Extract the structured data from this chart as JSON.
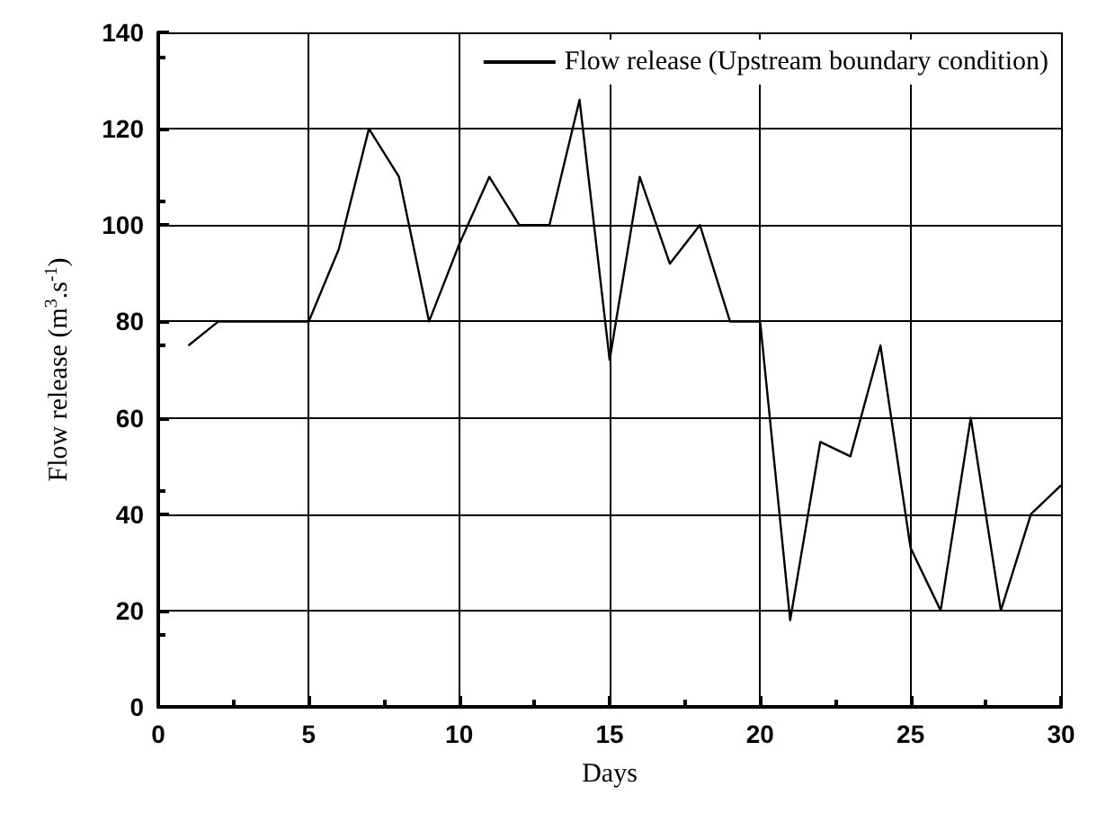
{
  "chart_data": {
    "type": "line",
    "xlabel": "Days",
    "ylabel": "Flow release (m$^{3}$.s$^{-1}$)",
    "x": [
      1,
      2,
      3,
      4,
      5,
      6,
      7,
      8,
      9,
      10,
      11,
      12,
      13,
      14,
      15,
      16,
      17,
      18,
      19,
      20,
      21,
      22,
      23,
      24,
      25,
      26,
      27,
      28,
      29,
      30
    ],
    "series": [
      {
        "name": "Flow release (Upstream boundary condition)",
        "color": "#000000",
        "values": [
          75,
          80,
          80,
          80,
          80,
          95,
          120,
          110,
          80,
          96,
          110,
          100,
          100,
          126,
          72,
          110,
          92,
          100,
          80,
          80,
          18,
          55,
          52,
          75,
          33,
          20,
          60,
          20,
          40,
          46
        ]
      }
    ],
    "xlim": [
      0,
      30
    ],
    "xticks": [
      0,
      5,
      10,
      15,
      20,
      25,
      30
    ],
    "ylim": [
      0,
      140
    ],
    "yticks": [
      0,
      20,
      40,
      60,
      80,
      100,
      120,
      140
    ],
    "grid": true,
    "legend": "top right",
    "marker": "none",
    "line_style": "solid"
  }
}
